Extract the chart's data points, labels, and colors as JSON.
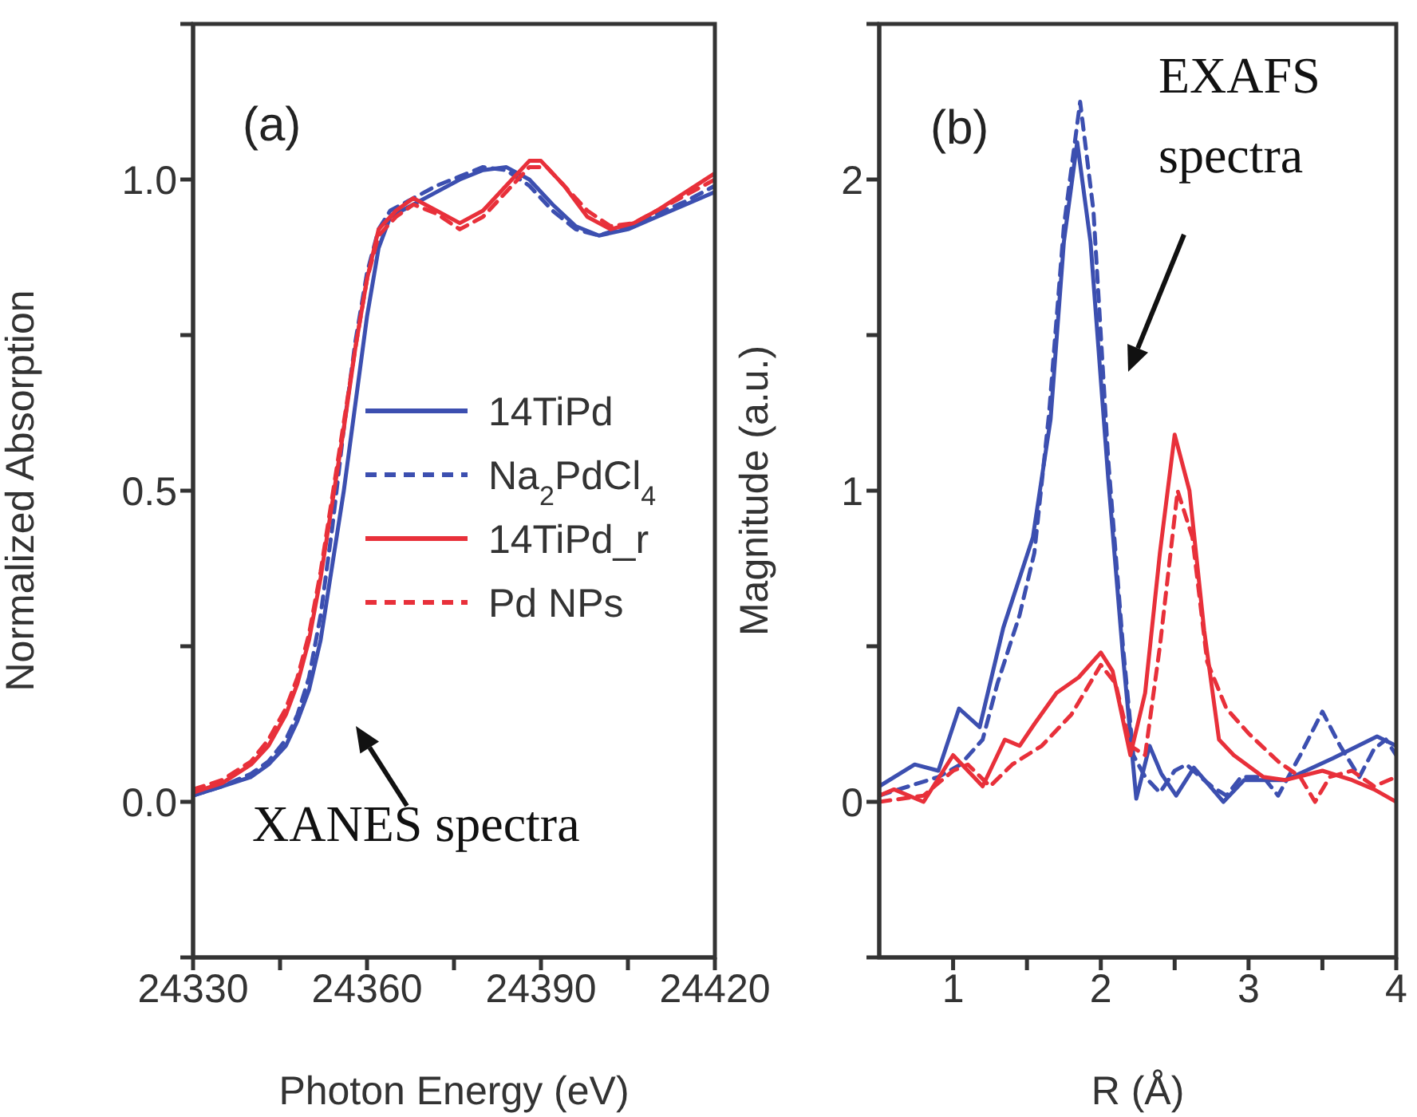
{
  "chart_data": [
    {
      "type": "line",
      "title": "(a)",
      "xlabel": "Photon Energy (eV)",
      "ylabel": "Normalized Absorption",
      "xlim": [
        24330,
        24420
      ],
      "xticks": [
        24330,
        {
          "value": 24345,
          "label": null
        },
        24360,
        {
          "value": 24375,
          "label": null
        },
        24390,
        {
          "value": 24405,
          "label": null
        },
        24420
      ],
      "ylim": [
        -0.25,
        1.25
      ],
      "yticks": [
        {
          "value": -0.25,
          "label": null
        },
        {
          "value": 0,
          "label": "0.0"
        },
        {
          "value": 0.25,
          "label": null
        },
        {
          "value": 0.5,
          "label": "0.5"
        },
        {
          "value": 0.75,
          "label": null
        },
        {
          "value": 1,
          "label": "1.0"
        },
        {
          "value": 1.25,
          "label": null
        }
      ],
      "legend": "right",
      "annotations": [
        "XANES spectra"
      ],
      "series": [
        {
          "name": "14TiPd",
          "color": "#3c4fb0",
          "line_style": "solid",
          "x": [
            24330,
            24335,
            24340,
            24343,
            24346,
            24348,
            24350,
            24352,
            24354,
            24356,
            24358,
            24360,
            24362,
            24364,
            24368,
            24372,
            24376,
            24380,
            24384,
            24388,
            24392,
            24396,
            24400,
            24405,
            24410,
            24415,
            24420
          ],
          "values": [
            0.01,
            0.025,
            0.04,
            0.06,
            0.09,
            0.13,
            0.18,
            0.26,
            0.38,
            0.5,
            0.64,
            0.78,
            0.89,
            0.94,
            0.96,
            0.98,
            1.0,
            1.015,
            1.02,
            1.0,
            0.96,
            0.925,
            0.91,
            0.92,
            0.94,
            0.96,
            0.98
          ]
        },
        {
          "name": "Na$_{2}$PdCl$_{4}$",
          "color": "#3c4fb0",
          "line_style": "dashed",
          "x": [
            24330,
            24335,
            24340,
            24343,
            24346,
            24348,
            24350,
            24352,
            24354,
            24356,
            24358,
            24360,
            24362,
            24364,
            24368,
            24372,
            24376,
            24380,
            24384,
            24388,
            24392,
            24396,
            24400,
            24405,
            24410,
            24415,
            24420
          ],
          "values": [
            0.01,
            0.025,
            0.045,
            0.065,
            0.1,
            0.14,
            0.2,
            0.3,
            0.44,
            0.6,
            0.74,
            0.85,
            0.92,
            0.95,
            0.97,
            0.99,
            1.005,
            1.02,
            1.015,
            0.99,
            0.95,
            0.92,
            0.91,
            0.925,
            0.945,
            0.965,
            0.99
          ]
        },
        {
          "name": "14TiPd_r",
          "color": "#e8303a",
          "line_style": "solid",
          "x": [
            24330,
            24335,
            24340,
            24343,
            24346,
            24348,
            24350,
            24352,
            24354,
            24356,
            24358,
            24360,
            24362,
            24365,
            24368,
            24372,
            24376,
            24380,
            24384,
            24388,
            24390,
            24394,
            24398,
            24402,
            24406,
            24410,
            24415,
            24420
          ],
          "values": [
            0.015,
            0.03,
            0.06,
            0.09,
            0.14,
            0.19,
            0.26,
            0.36,
            0.48,
            0.6,
            0.73,
            0.84,
            0.92,
            0.95,
            0.97,
            0.95,
            0.93,
            0.95,
            0.99,
            1.03,
            1.03,
            0.99,
            0.94,
            0.92,
            0.93,
            0.95,
            0.98,
            1.01
          ]
        },
        {
          "name": "Pd NPs",
          "color": "#e8303a",
          "line_style": "dashed",
          "x": [
            24330,
            24335,
            24340,
            24343,
            24346,
            24348,
            24350,
            24352,
            24354,
            24356,
            24358,
            24360,
            24362,
            24365,
            24368,
            24372,
            24376,
            24380,
            24384,
            24388,
            24391,
            24394,
            24398,
            24402,
            24406,
            24410,
            24415,
            24420
          ],
          "values": [
            0.02,
            0.035,
            0.065,
            0.1,
            0.15,
            0.2,
            0.27,
            0.37,
            0.49,
            0.61,
            0.73,
            0.84,
            0.91,
            0.94,
            0.96,
            0.945,
            0.92,
            0.94,
            0.98,
            1.02,
            1.02,
            0.99,
            0.95,
            0.925,
            0.93,
            0.95,
            0.975,
            1.0
          ]
        }
      ]
    },
    {
      "type": "line",
      "title": "(b)",
      "xlabel": "R (Å)",
      "ylabel": "Magnitude (a.u.)",
      "xlim": [
        0.5,
        4
      ],
      "xticks": [
        1,
        {
          "value": 1.5,
          "label": null
        },
        2,
        {
          "value": 2.5,
          "label": null
        },
        3,
        {
          "value": 3.5,
          "label": null
        },
        4
      ],
      "ylim": [
        -0.5,
        2.5
      ],
      "yticks": [
        {
          "value": -0.5,
          "label": null
        },
        0,
        {
          "value": 0.5,
          "label": null
        },
        1,
        {
          "value": 1.5,
          "label": null
        },
        2,
        {
          "value": 2.5,
          "label": null
        }
      ],
      "annotations": [
        "EXAFS spectra"
      ],
      "series": [
        {
          "color": "#3c4fb0",
          "line_style": "solid",
          "x": [
            0.5,
            0.74,
            0.9,
            1.04,
            1.18,
            1.34,
            1.54,
            1.66,
            1.75,
            1.84,
            1.93,
            2.05,
            2.15,
            2.24,
            2.33,
            2.41,
            2.51,
            2.63,
            2.83,
            2.97,
            3.25,
            3.57,
            3.87,
            4.0
          ],
          "values": [
            0.05,
            0.12,
            0.1,
            0.3,
            0.24,
            0.56,
            0.85,
            1.23,
            1.8,
            2.12,
            1.8,
            1.04,
            0.47,
            0.01,
            0.18,
            0.09,
            0.02,
            0.11,
            0.0,
            0.07,
            0.07,
            0.14,
            0.21,
            0.18
          ]
        },
        {
          "color": "#3c4fb0",
          "line_style": "dashed",
          "x": [
            0.5,
            0.7,
            0.9,
            1.05,
            1.2,
            1.3,
            1.45,
            1.55,
            1.65,
            1.75,
            1.86,
            1.95,
            2.05,
            2.15,
            2.22,
            2.3,
            2.4,
            2.5,
            2.58,
            2.65,
            2.75,
            2.85,
            2.95,
            3.1,
            3.2,
            3.35,
            3.5,
            3.62,
            3.75,
            3.85,
            3.93,
            4.0
          ],
          "values": [
            0.02,
            0.05,
            0.08,
            0.12,
            0.2,
            0.38,
            0.6,
            0.8,
            1.25,
            1.85,
            2.25,
            1.9,
            1.1,
            0.5,
            0.15,
            0.08,
            0.03,
            0.1,
            0.12,
            0.09,
            0.05,
            0.02,
            0.08,
            0.08,
            0.02,
            0.15,
            0.29,
            0.18,
            0.08,
            0.17,
            0.2,
            0.15
          ]
        },
        {
          "color": "#e8303a",
          "line_style": "solid",
          "x": [
            0.5,
            0.6,
            0.8,
            1.0,
            1.1,
            1.2,
            1.35,
            1.45,
            1.55,
            1.7,
            1.85,
            2.0,
            2.08,
            2.2,
            2.3,
            2.4,
            2.5,
            2.6,
            2.7,
            2.8,
            2.9,
            3.1,
            3.25,
            3.5,
            3.7,
            3.85,
            4.0
          ],
          "values": [
            0.02,
            0.04,
            0.0,
            0.15,
            0.1,
            0.05,
            0.2,
            0.18,
            0.25,
            0.35,
            0.4,
            0.48,
            0.42,
            0.15,
            0.35,
            0.8,
            1.18,
            1.0,
            0.55,
            0.2,
            0.15,
            0.08,
            0.07,
            0.1,
            0.07,
            0.04,
            0.0
          ]
        },
        {
          "color": "#e8303a",
          "line_style": "dashed",
          "x": [
            0.5,
            0.8,
            1.0,
            1.1,
            1.25,
            1.4,
            1.6,
            1.8,
            2.0,
            2.1,
            2.2,
            2.3,
            2.4,
            2.52,
            2.62,
            2.72,
            2.85,
            3.0,
            3.2,
            3.35,
            3.45,
            3.55,
            3.7,
            3.85,
            4.0
          ],
          "values": [
            0.0,
            0.02,
            0.1,
            0.12,
            0.05,
            0.12,
            0.18,
            0.28,
            0.44,
            0.38,
            0.18,
            0.15,
            0.5,
            1.0,
            0.85,
            0.45,
            0.3,
            0.22,
            0.13,
            0.08,
            0.0,
            0.08,
            0.1,
            0.05,
            0.08
          ]
        }
      ]
    }
  ]
}
